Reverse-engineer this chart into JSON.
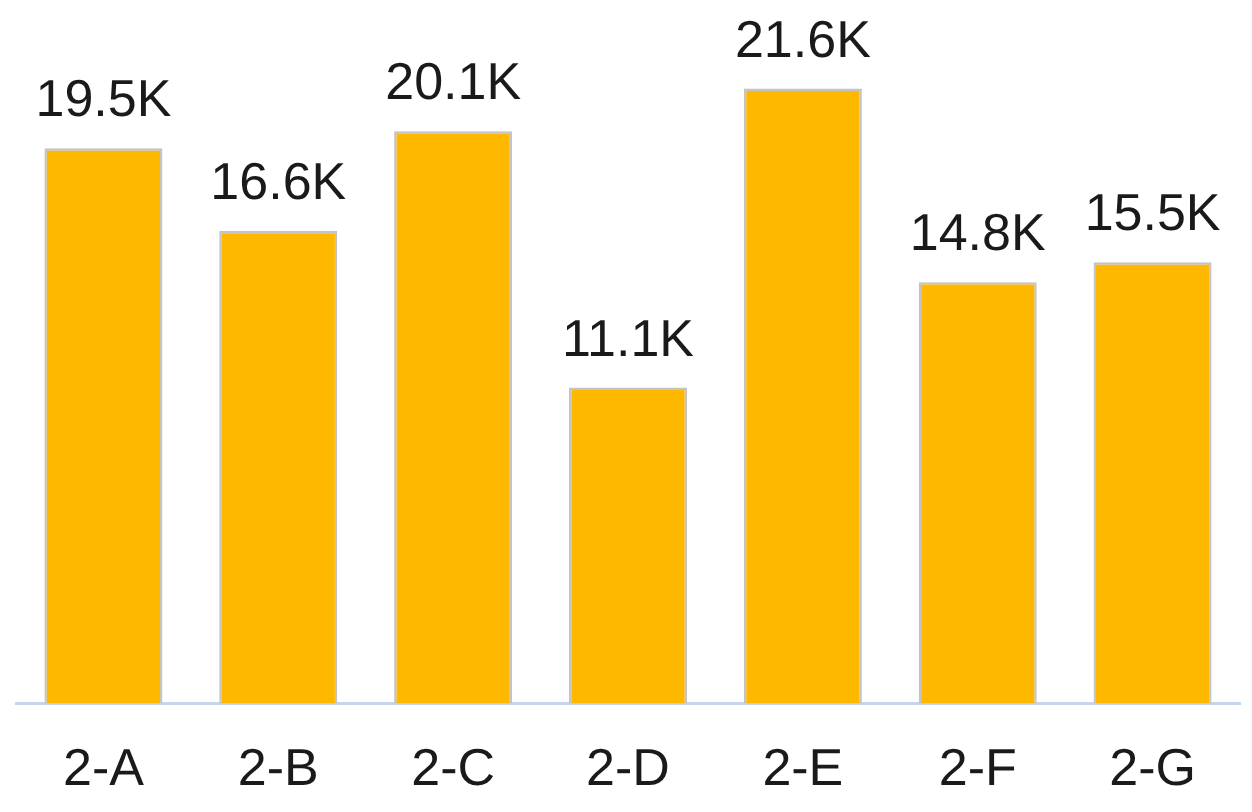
{
  "chart_data": {
    "type": "bar",
    "categories": [
      "2-A",
      "2-B",
      "2-C",
      "2-D",
      "2-E",
      "2-F",
      "2-G"
    ],
    "values": [
      19500,
      16600,
      20100,
      11100,
      21600,
      14800,
      15500
    ],
    "value_labels": [
      "19.5K",
      "16.6K",
      "20.1K",
      "11.1K",
      "21.6K",
      "14.8K",
      "15.5K"
    ],
    "color": "#ffb800",
    "tick_labels": "x",
    "grid": false,
    "legend": false
  }
}
